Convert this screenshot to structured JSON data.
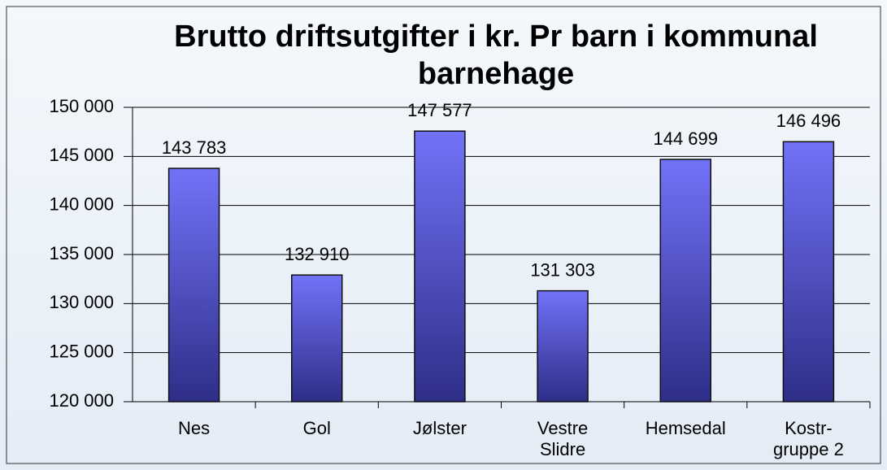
{
  "chart_data": {
    "type": "bar",
    "title": "Brutto driftsutgifter i kr. Pr barn i kommunal barnehage",
    "categories": [
      "Nes",
      "Gol",
      "Jølster",
      "Vestre\nSlidre",
      "Hemsedal",
      "Kostr-\ngruppe 2"
    ],
    "values": [
      143783,
      132910,
      147577,
      131303,
      144699,
      146496
    ],
    "value_labels": [
      "143 783",
      "132 910",
      "147 577",
      "131 303",
      "144 699",
      "146 496"
    ],
    "color": "#7272f8",
    "ylim": [
      120000,
      150000
    ],
    "yticks": [
      {
        "value": 120000,
        "label": "120 000"
      },
      {
        "value": 125000,
        "label": "125 000"
      },
      {
        "value": 130000,
        "label": "130 000"
      },
      {
        "value": 135000,
        "label": "135 000"
      },
      {
        "value": 140000,
        "label": "140 000"
      },
      {
        "value": 145000,
        "label": "145 000"
      },
      {
        "value": 150000,
        "label": "150 000"
      }
    ],
    "grid": true
  }
}
